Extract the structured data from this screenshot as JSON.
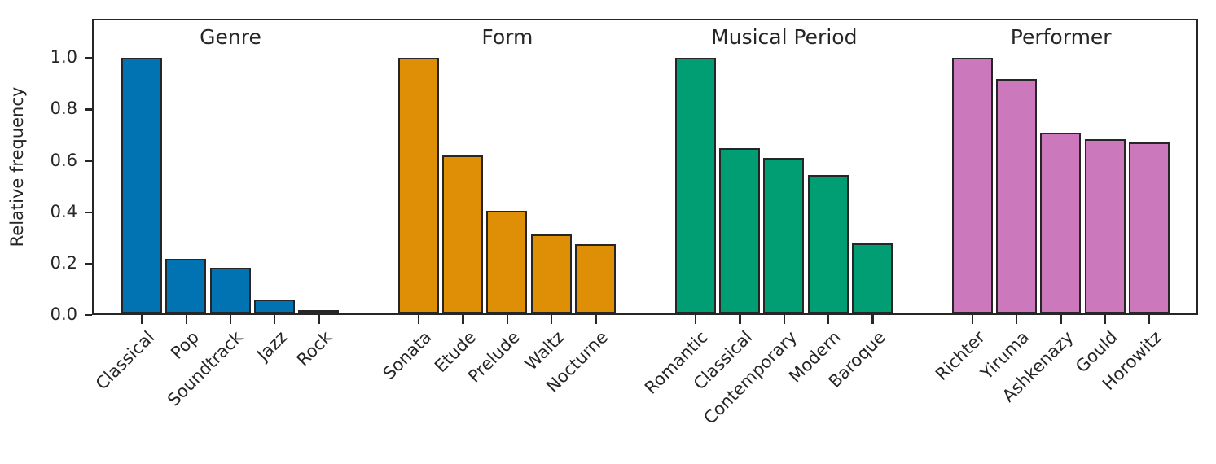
{
  "figure": {
    "background": "#ffffff",
    "axis_color": "#262626",
    "text_color": "#262626"
  },
  "chart_data": {
    "type": "bar",
    "title": "",
    "xlabel": "",
    "ylabel": "Relative frequency",
    "ylim": [
      0,
      1.15
    ],
    "grid": false,
    "legend_position": "none",
    "ytick_values": [
      0.0,
      0.2,
      0.4,
      0.6,
      0.8,
      1.0
    ],
    "ytick_labels": [
      "0.0",
      "0.2",
      "0.4",
      "0.6",
      "0.8",
      "1.0"
    ],
    "groups": [
      {
        "title": "Genre",
        "color": "#0173b2",
        "categories": [
          "Classical",
          "Pop",
          "Soundtrack",
          "Jazz",
          "Rock"
        ],
        "values": [
          1.0,
          0.22,
          0.185,
          0.06,
          0.02
        ]
      },
      {
        "title": "Form",
        "color": "#de8f05",
        "categories": [
          "Sonata",
          "Etude",
          "Prelude",
          "Waltz",
          "Nocturne"
        ],
        "values": [
          1.0,
          0.62,
          0.405,
          0.315,
          0.275
        ]
      },
      {
        "title": "Musical Period",
        "color": "#029e73",
        "categories": [
          "Romantic",
          "Classical",
          "Contemporary",
          "Modern",
          "Baroque"
        ],
        "values": [
          1.0,
          0.65,
          0.61,
          0.545,
          0.28
        ]
      },
      {
        "title": "Performer",
        "color": "#cc78bc",
        "categories": [
          "Richter",
          "Yiruma",
          "Ashkenazy",
          "Gould",
          "Horowitz"
        ],
        "values": [
          1.0,
          0.92,
          0.71,
          0.685,
          0.67
        ]
      }
    ]
  }
}
